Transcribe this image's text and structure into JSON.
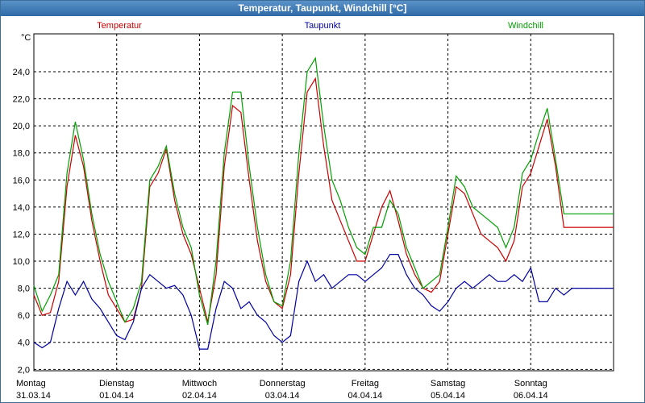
{
  "window": {
    "title": "Temperatur, Taupunkt, Windchill [°C]"
  },
  "chart_data": {
    "type": "line",
    "title": "Temperatur, Taupunkt, Windchill [°C]",
    "ylabel": "°C",
    "xlabel": "",
    "ylim": [
      1.9,
      26.8
    ],
    "xlim": [
      0,
      7
    ],
    "yticks": [
      2.0,
      4.0,
      6.0,
      8.0,
      10.0,
      12.0,
      14.0,
      16.0,
      18.0,
      20.0,
      22.0,
      24.0
    ],
    "ytick_labels": [
      "2,0",
      "4,0",
      "6,0",
      "8,0",
      "10,0",
      "12,0",
      "14,0",
      "16,0",
      "18,0",
      "20,0",
      "22,0",
      "24,0"
    ],
    "x_labels": [
      {
        "day": "Montag",
        "date": "31.03.14"
      },
      {
        "day": "Dienstag",
        "date": "01.04.14"
      },
      {
        "day": "Mittwoch",
        "date": "02.04.14"
      },
      {
        "day": "Donnerstag",
        "date": "03.04.14"
      },
      {
        "day": "Freitag",
        "date": "04.04.14"
      },
      {
        "day": "Samstag",
        "date": "05.04.14"
      },
      {
        "day": "Sonntag",
        "date": "06.04.14"
      }
    ],
    "grid": true,
    "series": [
      {
        "name": "Temperatur",
        "color": "#cc0000",
        "x": [
          0,
          0.1,
          0.2,
          0.3,
          0.4,
          0.5,
          0.6,
          0.7,
          0.8,
          0.9,
          1.0,
          1.1,
          1.2,
          1.3,
          1.4,
          1.5,
          1.6,
          1.7,
          1.8,
          1.9,
          2.0,
          2.1,
          2.2,
          2.3,
          2.4,
          2.5,
          2.6,
          2.7,
          2.8,
          2.9,
          3.0,
          3.1,
          3.2,
          3.3,
          3.4,
          3.5,
          3.6,
          3.7,
          3.8,
          3.9,
          4.0,
          4.1,
          4.2,
          4.3,
          4.4,
          4.5,
          4.6,
          4.7,
          4.8,
          4.9,
          5.0,
          5.1,
          5.2,
          5.3,
          5.4,
          5.5,
          5.6,
          5.7,
          5.8,
          5.9,
          6.0,
          6.1,
          6.2,
          6.3,
          6.4,
          6.5,
          6.6,
          6.7,
          6.8,
          6.9,
          7.0
        ],
        "values": [
          7.5,
          6.0,
          6.2,
          8.5,
          15.5,
          19.3,
          17.0,
          13.0,
          10.0,
          7.5,
          6.5,
          5.5,
          5.7,
          8.0,
          15.5,
          16.5,
          18.3,
          14.5,
          12.0,
          10.5,
          8.0,
          5.5,
          9.0,
          17.0,
          21.5,
          21.0,
          16.0,
          11.5,
          8.5,
          7.0,
          6.5,
          9.0,
          16.5,
          22.5,
          23.5,
          18.5,
          14.5,
          13.0,
          11.5,
          10.0,
          10.0,
          12.0,
          14.0,
          15.2,
          13.0,
          10.5,
          9.0,
          8.0,
          7.7,
          8.5,
          12.0,
          15.5,
          15.0,
          13.5,
          12.0,
          11.5,
          11.0,
          10.0,
          11.5,
          15.5,
          16.5,
          18.5,
          20.5,
          17.0,
          12.5,
          12.5,
          12.5,
          12.5,
          12.5,
          12.5,
          12.5
        ]
      },
      {
        "name": "Taupunkt",
        "color": "#0000a0",
        "x": [
          0,
          0.1,
          0.2,
          0.3,
          0.4,
          0.5,
          0.6,
          0.7,
          0.8,
          0.9,
          1.0,
          1.1,
          1.2,
          1.3,
          1.4,
          1.5,
          1.6,
          1.7,
          1.8,
          1.9,
          2.0,
          2.1,
          2.2,
          2.3,
          2.4,
          2.5,
          2.6,
          2.7,
          2.8,
          2.9,
          3.0,
          3.1,
          3.2,
          3.3,
          3.4,
          3.5,
          3.6,
          3.7,
          3.8,
          3.9,
          4.0,
          4.1,
          4.2,
          4.3,
          4.4,
          4.5,
          4.6,
          4.7,
          4.8,
          4.9,
          5.0,
          5.1,
          5.2,
          5.3,
          5.4,
          5.5,
          5.6,
          5.7,
          5.8,
          5.9,
          6.0,
          6.1,
          6.2,
          6.3,
          6.4,
          6.5,
          6.6,
          6.7,
          6.8,
          6.9,
          7.0
        ],
        "values": [
          4.0,
          3.6,
          4.0,
          6.5,
          8.5,
          7.5,
          8.5,
          7.2,
          6.5,
          5.5,
          4.5,
          4.2,
          5.5,
          8.0,
          9.0,
          8.5,
          8.0,
          8.2,
          7.5,
          6.0,
          3.5,
          3.5,
          6.5,
          8.5,
          8.0,
          6.5,
          7.0,
          6.0,
          5.5,
          4.5,
          4.0,
          4.5,
          8.5,
          10.0,
          8.5,
          9.0,
          8.0,
          8.5,
          9.0,
          9.0,
          8.5,
          9.0,
          9.5,
          10.5,
          10.5,
          9.0,
          8.0,
          7.5,
          6.7,
          6.3,
          7.0,
          8.0,
          8.5,
          8.0,
          8.5,
          9.0,
          8.5,
          8.5,
          9.0,
          8.5,
          9.5,
          7.0,
          7.0,
          8.0,
          7.5,
          8.0,
          8.0,
          8.0,
          8.0,
          8.0,
          8.0
        ]
      },
      {
        "name": "Windchill",
        "color": "#00a000",
        "x": [
          0,
          0.1,
          0.2,
          0.3,
          0.4,
          0.5,
          0.6,
          0.7,
          0.8,
          0.9,
          1.0,
          1.1,
          1.2,
          1.3,
          1.4,
          1.5,
          1.6,
          1.7,
          1.8,
          1.9,
          2.0,
          2.1,
          2.2,
          2.3,
          2.4,
          2.5,
          2.6,
          2.7,
          2.8,
          2.9,
          3.0,
          3.1,
          3.2,
          3.3,
          3.4,
          3.5,
          3.6,
          3.7,
          3.8,
          3.9,
          4.0,
          4.1,
          4.2,
          4.3,
          4.4,
          4.5,
          4.6,
          4.7,
          4.8,
          4.9,
          5.0,
          5.1,
          5.2,
          5.3,
          5.4,
          5.5,
          5.6,
          5.7,
          5.8,
          5.9,
          6.0,
          6.1,
          6.2,
          6.3,
          6.4,
          6.5,
          6.6,
          6.7,
          6.8,
          6.9,
          7.0
        ],
        "values": [
          8.2,
          6.3,
          7.5,
          9.0,
          16.5,
          20.3,
          17.5,
          13.5,
          10.5,
          8.5,
          7.0,
          5.5,
          6.5,
          8.5,
          16.0,
          17.0,
          18.5,
          15.0,
          12.5,
          11.0,
          7.5,
          5.3,
          10.0,
          18.0,
          22.5,
          22.5,
          17.0,
          12.5,
          9.0,
          7.0,
          6.7,
          10.0,
          18.0,
          24.0,
          25.0,
          20.0,
          16.0,
          14.5,
          12.5,
          11.0,
          10.5,
          12.5,
          12.5,
          14.5,
          13.5,
          11.0,
          9.5,
          8.0,
          8.5,
          9.0,
          12.5,
          16.3,
          15.5,
          14.0,
          13.5,
          13.0,
          12.5,
          11.0,
          12.5,
          16.5,
          17.5,
          19.5,
          21.3,
          17.5,
          13.5,
          13.5,
          13.5,
          13.5,
          13.5,
          13.5,
          13.5
        ]
      }
    ]
  }
}
